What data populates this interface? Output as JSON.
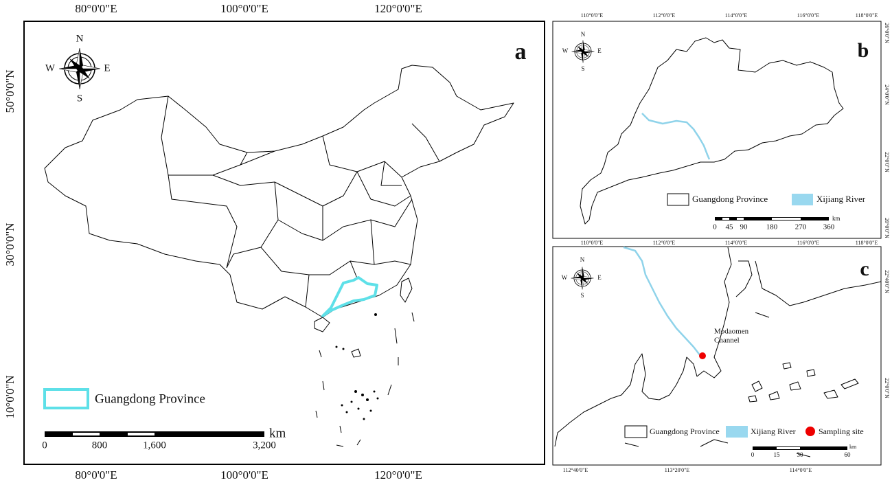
{
  "panels": [
    {
      "letter": "a",
      "top_labels": [
        "80°0'0\"E",
        "100°0'0\"E",
        "120°0'0\"E"
      ],
      "bottom_labels": [
        "80°0'0\"E",
        "100°0'0\"E",
        "120°0'0\"E"
      ],
      "side_labels": [
        "50°0'0\"N",
        "30°0'0\"N",
        "10°0'0\"N"
      ],
      "compass": [
        "N",
        "S",
        "W",
        "E"
      ],
      "legend": [
        "Guangdong Province"
      ],
      "scale_unit": "km",
      "scale_labels": [
        "0",
        "800",
        "1,600",
        "3,200"
      ]
    },
    {
      "letter": "b",
      "top_labels": [
        "110°0'0\"E",
        "112°0'0\"E",
        "114°0'0\"E",
        "116°0'0\"E",
        "118°0'0\"E"
      ],
      "bottom_labels": [
        "110°0'0\"E",
        "112°0'0\"E",
        "114°0'0\"E",
        "116°0'0\"E",
        "118°0'0\"E"
      ],
      "side_labels": [
        "26°0'0\"N",
        "24°0'0\"N",
        "22°0'0\"N",
        "20°0'0\"N"
      ],
      "compass": [
        "N",
        "S",
        "W",
        "E"
      ],
      "legend": [
        "Guangdong Province",
        "Xijiang River"
      ],
      "scale_unit": "km",
      "scale_labels": [
        "0",
        "45",
        "90",
        "180",
        "270",
        "360"
      ]
    },
    {
      "letter": "c",
      "bottom_labels": [
        "112°40'0\"E",
        "113°20'0\"E",
        "114°0'0\"E"
      ],
      "side_labels": [
        "22°40'0\"N",
        "22°0'0\"N"
      ],
      "compass": [
        "N",
        "S",
        "W",
        "E"
      ],
      "annotation": [
        "Modaomen",
        "Channel"
      ],
      "legend": [
        "Guangdong Province",
        "Xijiang River",
        "Sampling site"
      ],
      "scale_unit": "km",
      "scale_labels": [
        "0",
        "15",
        "30",
        "60"
      ]
    }
  ]
}
